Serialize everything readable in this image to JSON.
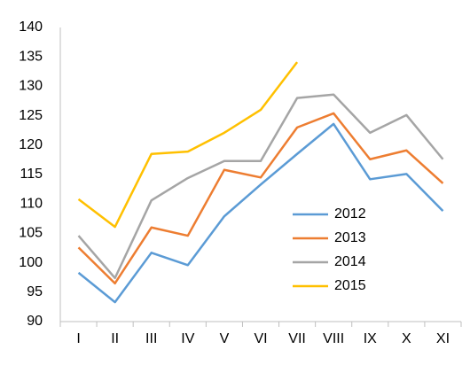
{
  "chart_data": {
    "type": "line",
    "categories": [
      "I",
      "II",
      "III",
      "IV",
      "V",
      "VI",
      "VII",
      "VIII",
      "IX",
      "X",
      "XI"
    ],
    "series": [
      {
        "name": "2012",
        "color": "#5b9bd5",
        "values": [
          98.3,
          93.3,
          101.7,
          99.6,
          107.9,
          113.3,
          118.5,
          123.6,
          114.2,
          115.1,
          108.8
        ]
      },
      {
        "name": "2013",
        "color": "#ed7d31",
        "values": [
          102.6,
          96.5,
          106.0,
          104.6,
          115.8,
          114.5,
          123.0,
          125.4,
          117.6,
          119.1,
          113.5
        ]
      },
      {
        "name": "2014",
        "color": "#a5a5a5",
        "values": [
          104.6,
          97.4,
          110.6,
          114.4,
          117.3,
          117.3,
          128.0,
          128.6,
          122.1,
          125.1,
          117.6
        ]
      },
      {
        "name": "2015",
        "color": "#ffc000",
        "values": [
          110.8,
          106.1,
          118.5,
          118.9,
          122.1,
          126.0,
          134.1,
          null,
          null,
          null,
          null
        ]
      }
    ],
    "ylim": [
      90,
      140
    ],
    "yticks": [
      90,
      95,
      100,
      105,
      110,
      115,
      120,
      125,
      130,
      135,
      140
    ],
    "grid": false,
    "legend": "inside-lower-right"
  }
}
